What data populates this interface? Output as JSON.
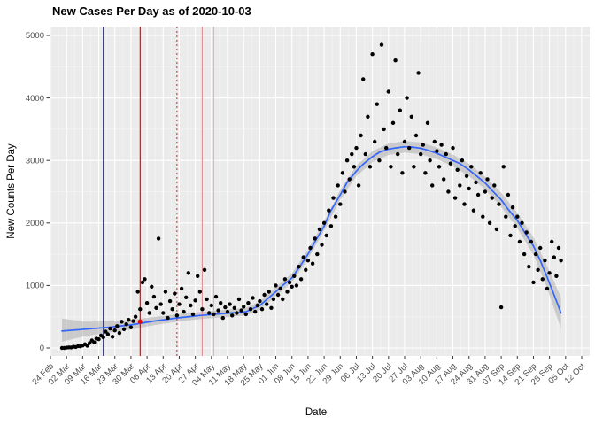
{
  "chart_data": {
    "type": "scatter",
    "title": "New Cases Per Day as of 2020-10-03",
    "xlabel": "Date",
    "ylabel": "New Counts Per Day",
    "ylim": [
      0,
      5000
    ],
    "grid": true,
    "legend": "none",
    "y_ticks": [
      0,
      1000,
      2000,
      3000,
      4000,
      5000
    ],
    "y_tick_labels": [
      "0",
      "1000",
      "2000",
      "3000",
      "4000",
      "5000"
    ],
    "x_tick_days": [
      0,
      7,
      14,
      21,
      28,
      35,
      42,
      49,
      56,
      63,
      70,
      77,
      84,
      91,
      98,
      105,
      112,
      119,
      126,
      133,
      140,
      147,
      154,
      161,
      168,
      175,
      182,
      189,
      196,
      203,
      210,
      217,
      224,
      231
    ],
    "x_tick_labels": [
      "24 Feb",
      "02 Mar",
      "09 Mar",
      "16 Mar",
      "23 Mar",
      "30 Mar",
      "06 Apr",
      "13 Apr",
      "20 Apr",
      "27 Apr",
      "04 May",
      "11 May",
      "18 May",
      "25 May",
      "01 Jun",
      "08 Jun",
      "15 Jun",
      "22 Jun",
      "29 Jun",
      "06 Jul",
      "13 Jul",
      "20 Jul",
      "27 Jul",
      "03 Aug",
      "10 Aug",
      "17 Aug",
      "24 Aug",
      "31 Aug",
      "07 Sep",
      "14 Sep",
      "21 Sep",
      "28 Sep",
      "05 Oct",
      "12 Oct"
    ],
    "x_day_max": 231,
    "points": [
      [
        5,
        0
      ],
      [
        6,
        0
      ],
      [
        7,
        5
      ],
      [
        8,
        10
      ],
      [
        9,
        8
      ],
      [
        10,
        20
      ],
      [
        11,
        15
      ],
      [
        12,
        30
      ],
      [
        13,
        25
      ],
      [
        14,
        40
      ],
      [
        15,
        60
      ],
      [
        16,
        35
      ],
      [
        17,
        80
      ],
      [
        18,
        120
      ],
      [
        19,
        90
      ],
      [
        20,
        150
      ],
      [
        21,
        140
      ],
      [
        22,
        200
      ],
      [
        23,
        170
      ],
      [
        24,
        260
      ],
      [
        25,
        220
      ],
      [
        26,
        310
      ],
      [
        27,
        180
      ],
      [
        28,
        280
      ],
      [
        29,
        350
      ],
      [
        30,
        240
      ],
      [
        31,
        420
      ],
      [
        32,
        300
      ],
      [
        33,
        380
      ],
      [
        34,
        450
      ],
      [
        35,
        330
      ],
      [
        36,
        430
      ],
      [
        37,
        500
      ],
      [
        38,
        900
      ],
      [
        39,
        620
      ],
      [
        40,
        1050
      ],
      [
        41,
        1100
      ],
      [
        42,
        720
      ],
      [
        43,
        560
      ],
      [
        44,
        980
      ],
      [
        45,
        820
      ],
      [
        46,
        640
      ],
      [
        47,
        1750
      ],
      [
        48,
        700
      ],
      [
        49,
        560
      ],
      [
        50,
        900
      ],
      [
        51,
        480
      ],
      [
        52,
        750
      ],
      [
        53,
        620
      ],
      [
        54,
        870
      ],
      [
        55,
        520
      ],
      [
        56,
        700
      ],
      [
        57,
        950
      ],
      [
        58,
        580
      ],
      [
        59,
        810
      ],
      [
        60,
        1200
      ],
      [
        61,
        680
      ],
      [
        62,
        540
      ],
      [
        63,
        760
      ],
      [
        64,
        1150
      ],
      [
        65,
        900
      ],
      [
        66,
        620
      ],
      [
        67,
        1250
      ],
      [
        68,
        780
      ],
      [
        69,
        560
      ],
      [
        70,
        680
      ],
      [
        71,
        540
      ],
      [
        72,
        820
      ],
      [
        73,
        600
      ],
      [
        74,
        720
      ],
      [
        75,
        480
      ],
      [
        76,
        650
      ],
      [
        77,
        580
      ],
      [
        78,
        700
      ],
      [
        79,
        520
      ],
      [
        80,
        640
      ],
      [
        81,
        560
      ],
      [
        82,
        780
      ],
      [
        83,
        600
      ],
      [
        84,
        660
      ],
      [
        85,
        540
      ],
      [
        86,
        720
      ],
      [
        87,
        620
      ],
      [
        88,
        800
      ],
      [
        89,
        580
      ],
      [
        90,
        680
      ],
      [
        91,
        750
      ],
      [
        92,
        620
      ],
      [
        93,
        850
      ],
      [
        94,
        700
      ],
      [
        95,
        900
      ],
      [
        96,
        640
      ],
      [
        97,
        780
      ],
      [
        98,
        1000
      ],
      [
        99,
        850
      ],
      [
        100,
        950
      ],
      [
        101,
        780
      ],
      [
        102,
        1100
      ],
      [
        103,
        900
      ],
      [
        104,
        1050
      ],
      [
        105,
        980
      ],
      [
        106,
        1150
      ],
      [
        107,
        1000
      ],
      [
        108,
        1300
      ],
      [
        109,
        1100
      ],
      [
        110,
        1450
      ],
      [
        111,
        1250
      ],
      [
        112,
        1400
      ],
      [
        113,
        1600
      ],
      [
        114,
        1350
      ],
      [
        115,
        1750
      ],
      [
        116,
        1500
      ],
      [
        117,
        1900
      ],
      [
        118,
        1650
      ],
      [
        119,
        2000
      ],
      [
        120,
        1800
      ],
      [
        121,
        2200
      ],
      [
        122,
        1950
      ],
      [
        123,
        2400
      ],
      [
        124,
        2100
      ],
      [
        125,
        2600
      ],
      [
        126,
        2300
      ],
      [
        127,
        2800
      ],
      [
        128,
        2500
      ],
      [
        129,
        3000
      ],
      [
        130,
        2700
      ],
      [
        131,
        3100
      ],
      [
        132,
        2900
      ],
      [
        133,
        3200
      ],
      [
        134,
        2600
      ],
      [
        135,
        3400
      ],
      [
        136,
        4300
      ],
      [
        137,
        3100
      ],
      [
        138,
        3700
      ],
      [
        139,
        2900
      ],
      [
        140,
        4700
      ],
      [
        141,
        3300
      ],
      [
        142,
        3900
      ],
      [
        143,
        3000
      ],
      [
        144,
        4850
      ],
      [
        145,
        3500
      ],
      [
        146,
        3200
      ],
      [
        147,
        4100
      ],
      [
        148,
        2900
      ],
      [
        149,
        3600
      ],
      [
        150,
        4600
      ],
      [
        151,
        3100
      ],
      [
        152,
        3800
      ],
      [
        153,
        2800
      ],
      [
        154,
        3300
      ],
      [
        155,
        4000
      ],
      [
        156,
        3200
      ],
      [
        157,
        3700
      ],
      [
        158,
        2900
      ],
      [
        159,
        3400
      ],
      [
        160,
        4400
      ],
      [
        161,
        3100
      ],
      [
        162,
        3250
      ],
      [
        163,
        2800
      ],
      [
        164,
        3600
      ],
      [
        165,
        3000
      ],
      [
        166,
        2600
      ],
      [
        167,
        3300
      ],
      [
        168,
        3150
      ],
      [
        169,
        2900
      ],
      [
        170,
        3250
      ],
      [
        171,
        2700
      ],
      [
        172,
        3100
      ],
      [
        173,
        2500
      ],
      [
        174,
        2950
      ],
      [
        175,
        3200
      ],
      [
        176,
        2400
      ],
      [
        177,
        2850
      ],
      [
        178,
        2600
      ],
      [
        179,
        3000
      ],
      [
        180,
        2300
      ],
      [
        181,
        2750
      ],
      [
        182,
        2550
      ],
      [
        183,
        2900
      ],
      [
        184,
        2200
      ],
      [
        185,
        2650
      ],
      [
        186,
        2450
      ],
      [
        187,
        2800
      ],
      [
        188,
        2100
      ],
      [
        189,
        2500
      ],
      [
        190,
        2700
      ],
      [
        191,
        2000
      ],
      [
        192,
        2400
      ],
      [
        193,
        2600
      ],
      [
        194,
        1900
      ],
      [
        195,
        2300
      ],
      [
        196,
        650
      ],
      [
        197,
        2900
      ],
      [
        198,
        2100
      ],
      [
        199,
        2450
      ],
      [
        200,
        1800
      ],
      [
        201,
        2250
      ],
      [
        202,
        1950
      ],
      [
        203,
        2100
      ],
      [
        204,
        1700
      ],
      [
        205,
        2000
      ],
      [
        206,
        1500
      ],
      [
        207,
        1850
      ],
      [
        208,
        1300
      ],
      [
        209,
        1700
      ],
      [
        210,
        1050
      ],
      [
        211,
        1500
      ],
      [
        212,
        1250
      ],
      [
        213,
        1600
      ],
      [
        214,
        1100
      ],
      [
        215,
        1400
      ],
      [
        216,
        950
      ],
      [
        217,
        1200
      ],
      [
        218,
        1700
      ],
      [
        219,
        1450
      ],
      [
        220,
        1150
      ],
      [
        221,
        1600
      ],
      [
        222,
        1400
      ]
    ],
    "smooth_line": [
      [
        5,
        270
      ],
      [
        15,
        300
      ],
      [
        25,
        330
      ],
      [
        35,
        370
      ],
      [
        45,
        430
      ],
      [
        55,
        480
      ],
      [
        65,
        520
      ],
      [
        75,
        550
      ],
      [
        85,
        580
      ],
      [
        91,
        680
      ],
      [
        98,
        900
      ],
      [
        101,
        1000
      ],
      [
        105,
        1120
      ],
      [
        108,
        1280
      ],
      [
        112,
        1500
      ],
      [
        115,
        1700
      ],
      [
        119,
        1950
      ],
      [
        122,
        2200
      ],
      [
        126,
        2450
      ],
      [
        129,
        2650
      ],
      [
        133,
        2830
      ],
      [
        136,
        2940
      ],
      [
        140,
        3060
      ],
      [
        143,
        3130
      ],
      [
        147,
        3180
      ],
      [
        150,
        3200
      ],
      [
        154,
        3220
      ],
      [
        157,
        3215
      ],
      [
        161,
        3195
      ],
      [
        164,
        3165
      ],
      [
        168,
        3115
      ],
      [
        171,
        3065
      ],
      [
        175,
        3000
      ],
      [
        178,
        2950
      ],
      [
        182,
        2850
      ],
      [
        185,
        2760
      ],
      [
        189,
        2640
      ],
      [
        192,
        2520
      ],
      [
        196,
        2370
      ],
      [
        199,
        2220
      ],
      [
        203,
        2040
      ],
      [
        206,
        1860
      ],
      [
        210,
        1630
      ],
      [
        213,
        1400
      ],
      [
        216,
        1130
      ],
      [
        219,
        850
      ],
      [
        222,
        560
      ]
    ],
    "ribbon": [
      [
        5,
        100,
        470
      ],
      [
        15,
        190,
        420
      ],
      [
        25,
        245,
        425
      ],
      [
        35,
        295,
        450
      ],
      [
        45,
        365,
        495
      ],
      [
        55,
        420,
        540
      ],
      [
        65,
        462,
        578
      ],
      [
        75,
        492,
        608
      ],
      [
        85,
        520,
        640
      ],
      [
        91,
        612,
        748
      ],
      [
        98,
        828,
        972
      ],
      [
        105,
        1048,
        1192
      ],
      [
        112,
        1424,
        1576
      ],
      [
        119,
        1872,
        2028
      ],
      [
        126,
        2372,
        2528
      ],
      [
        133,
        2748,
        2912
      ],
      [
        140,
        2972,
        3148
      ],
      [
        147,
        3088,
        3272
      ],
      [
        154,
        3128,
        3312
      ],
      [
        161,
        3102,
        3288
      ],
      [
        168,
        3022,
        3208
      ],
      [
        175,
        2905,
        3095
      ],
      [
        182,
        2752,
        2948
      ],
      [
        189,
        2538,
        2742
      ],
      [
        196,
        2258,
        2482
      ],
      [
        203,
        1918,
        2162
      ],
      [
        210,
        1490,
        1770
      ],
      [
        216,
        950,
        1310
      ],
      [
        222,
        310,
        810
      ]
    ],
    "vlines": [
      {
        "day": 23,
        "color": "#1a1a66",
        "dash": "",
        "name": "navy-reference-line"
      },
      {
        "day": 39,
        "color": "#8b1a1a",
        "dash": "",
        "name": "darkred-reference-line"
      },
      {
        "day": 55,
        "color": "#cc3333",
        "dash": "2 3",
        "name": "red-dotted-reference-line"
      },
      {
        "day": 66,
        "color": "#e09090",
        "dash": "",
        "name": "pink-reference-line-1"
      },
      {
        "day": 71,
        "color": "#eab0b0",
        "dash": "",
        "name": "pink-reference-line-2"
      }
    ],
    "highlight_point": {
      "day": 39,
      "value": 420,
      "color": "#ee0000"
    },
    "colors": {
      "panel": "#ebebeb",
      "grid_major": "#ffffff",
      "grid_minor": "#f4f4f4",
      "point": "#000000",
      "smooth_line": "#3366ff",
      "ribbon": "#999999",
      "tick_text": "#4d4d4d",
      "tick_mark": "#333333"
    }
  }
}
